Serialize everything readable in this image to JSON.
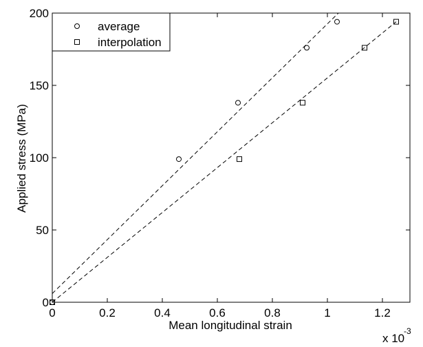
{
  "chart_data": {
    "type": "scatter",
    "title": "",
    "xlabel": "Mean longitudinal strain",
    "ylabel": "Applied stress (MPa)",
    "x_multiplier_label": "x 10",
    "x_multiplier_exponent": "-3",
    "xlim": [
      0,
      1.3
    ],
    "ylim": [
      0,
      200
    ],
    "xticks": [
      0,
      0.2,
      0.4,
      0.6,
      0.8,
      1,
      1.2
    ],
    "xtick_labels": [
      "0",
      "0.2",
      "0.4",
      "0.6",
      "0.8",
      "1",
      "1.2"
    ],
    "yticks": [
      0,
      50,
      100,
      150,
      200
    ],
    "ytick_labels": [
      "0",
      "50",
      "100",
      "150",
      "200"
    ],
    "grid": false,
    "legend_position": "top-left",
    "series": [
      {
        "name": "average",
        "marker": "circle",
        "x": [
          0,
          0.46,
          0.675,
          0.925,
          1.035
        ],
        "y": [
          0,
          99,
          138,
          176,
          194
        ],
        "fit_line": {
          "x": [
            0,
            1.04
          ],
          "y": [
            6,
            200
          ]
        }
      },
      {
        "name": "interpolation",
        "marker": "square",
        "x": [
          0,
          0.68,
          0.91,
          1.135,
          1.25
        ],
        "y": [
          0,
          99,
          138,
          176,
          194
        ],
        "fit_line": {
          "x": [
            0,
            1.25
          ],
          "y": [
            0,
            194
          ]
        }
      }
    ]
  }
}
